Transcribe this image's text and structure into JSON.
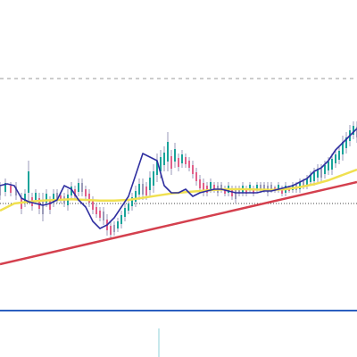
{
  "chart_data": {
    "type": "line",
    "title": "",
    "xlabel": "",
    "ylabel": "",
    "grid": false,
    "legend": "none",
    "x_range": [
      0,
      100
    ],
    "y_range": [
      0,
      100
    ],
    "colors": {
      "candle_up": "#1aa39a",
      "candle_down": "#e0608a",
      "candle_neutral": "#9a9ab8",
      "fast_ma": "#2f2fa0",
      "slow_ma": "#f0e050",
      "trendline": "#d4404e",
      "support_line": "#2b5fc0",
      "resistance_line": "#9a9a9a",
      "reference_line": "#444444",
      "cursor_line": "#8fd0d8"
    },
    "reference_levels": [
      {
        "name": "resistance",
        "style": "dashed",
        "y": 78
      },
      {
        "name": "reference",
        "style": "dotted",
        "y": 43
      },
      {
        "name": "support",
        "style": "solid",
        "y": 13
      }
    ],
    "trendline": {
      "x": [
        0,
        100
      ],
      "y": [
        26,
        49
      ]
    },
    "fast_ma": {
      "x": [
        0,
        2,
        4,
        6,
        8,
        10,
        12,
        14,
        16,
        18,
        20,
        22,
        24,
        26,
        28,
        30,
        32,
        34,
        36,
        38,
        40,
        42,
        44,
        46,
        48,
        50,
        52,
        54,
        56,
        58,
        60,
        62,
        64,
        66,
        68,
        70,
        72,
        74,
        76,
        78,
        80,
        82,
        84,
        86,
        88,
        90,
        92,
        94,
        96,
        98,
        100
      ],
      "y": [
        48,
        48.5,
        48,
        44.5,
        43.5,
        43,
        42.5,
        43,
        44,
        48,
        47,
        44,
        42,
        38,
        36,
        37,
        39,
        42,
        45,
        51,
        57,
        56,
        55,
        48,
        46,
        46,
        47,
        45,
        46,
        46.5,
        47,
        47,
        46.5,
        46,
        46,
        46,
        46,
        46.5,
        46.5,
        47,
        47.5,
        48,
        49,
        50,
        52,
        53,
        55,
        58,
        60,
        62,
        64
      ]
    },
    "slow_ma": {
      "x": [
        0,
        4,
        8,
        12,
        16,
        20,
        24,
        28,
        32,
        36,
        40,
        44,
        48,
        52,
        56,
        60,
        64,
        68,
        72,
        76,
        80,
        84,
        88,
        92,
        96,
        100
      ],
      "y": [
        41,
        43,
        43.5,
        43.8,
        44,
        44.2,
        44,
        43.8,
        43.8,
        44,
        44.6,
        45.2,
        45.8,
        46.2,
        46.5,
        46.8,
        47,
        47,
        46.9,
        46.8,
        47,
        47.6,
        48.4,
        49.5,
        51,
        52.5
      ]
    },
    "candles": [
      {
        "x": 0,
        "y": [
          44,
          49
        ]
      },
      {
        "x": 1.5,
        "y": [
          45,
          50
        ]
      },
      {
        "x": 3,
        "y": [
          45,
          49
        ]
      },
      {
        "x": 4.5,
        "y": [
          44,
          49
        ]
      },
      {
        "x": 6,
        "y": [
          40,
          46
        ]
      },
      {
        "x": 7,
        "y": [
          42,
          47
        ]
      },
      {
        "x": 8,
        "y": [
          43,
          55
        ]
      },
      {
        "x": 9,
        "y": [
          41,
          46
        ]
      },
      {
        "x": 10,
        "y": [
          43,
          47
        ]
      },
      {
        "x": 11,
        "y": [
          40,
          46
        ]
      },
      {
        "x": 12,
        "y": [
          38,
          46
        ]
      },
      {
        "x": 13,
        "y": [
          42,
          47
        ]
      },
      {
        "x": 14,
        "y": [
          40,
          45
        ]
      },
      {
        "x": 15,
        "y": [
          42,
          47
        ]
      },
      {
        "x": 16,
        "y": [
          43,
          47
        ]
      },
      {
        "x": 17,
        "y": [
          43,
          46
        ]
      },
      {
        "x": 18,
        "y": [
          42,
          46
        ]
      },
      {
        "x": 19,
        "y": [
          41,
          47
        ]
      },
      {
        "x": 20,
        "y": [
          44,
          49
        ]
      },
      {
        "x": 21,
        "y": [
          44,
          48
        ]
      },
      {
        "x": 22,
        "y": [
          45,
          50
        ]
      },
      {
        "x": 23,
        "y": [
          45,
          50
        ]
      },
      {
        "x": 24,
        "y": [
          44,
          48
        ]
      },
      {
        "x": 25,
        "y": [
          42,
          47
        ]
      },
      {
        "x": 26,
        "y": [
          40,
          45
        ]
      },
      {
        "x": 27,
        "y": [
          39,
          43
        ]
      },
      {
        "x": 28,
        "y": [
          38,
          42
        ]
      },
      {
        "x": 29,
        "y": [
          37,
          42
        ]
      },
      {
        "x": 30,
        "y": [
          34,
          40
        ]
      },
      {
        "x": 31,
        "y": [
          33,
          38
        ]
      },
      {
        "x": 32,
        "y": [
          34,
          38
        ]
      },
      {
        "x": 33,
        "y": [
          35,
          39
        ]
      },
      {
        "x": 34,
        "y": [
          36,
          41
        ]
      },
      {
        "x": 35,
        "y": [
          38,
          43
        ]
      },
      {
        "x": 36,
        "y": [
          40,
          44
        ]
      },
      {
        "x": 37,
        "y": [
          41,
          46
        ]
      },
      {
        "x": 38,
        "y": [
          42,
          48
        ]
      },
      {
        "x": 39,
        "y": [
          44,
          50
        ]
      },
      {
        "x": 40,
        "y": [
          44,
          50
        ]
      },
      {
        "x": 41,
        "y": [
          44,
          49
        ]
      },
      {
        "x": 42,
        "y": [
          45,
          52
        ]
      },
      {
        "x": 43,
        "y": [
          46,
          54
        ]
      },
      {
        "x": 44,
        "y": [
          49,
          57
        ]
      },
      {
        "x": 45,
        "y": [
          50,
          58
        ]
      },
      {
        "x": 46,
        "y": [
          52,
          59
        ]
      },
      {
        "x": 47,
        "y": [
          52,
          63
        ]
      },
      {
        "x": 48,
        "y": [
          51,
          58
        ]
      },
      {
        "x": 49,
        "y": [
          53,
          60
        ]
      },
      {
        "x": 50,
        "y": [
          52,
          57
        ]
      },
      {
        "x": 51,
        "y": [
          53,
          58
        ]
      },
      {
        "x": 52,
        "y": [
          53,
          57
        ]
      },
      {
        "x": 53,
        "y": [
          52,
          56
        ]
      },
      {
        "x": 54,
        "y": [
          50,
          55
        ]
      },
      {
        "x": 55,
        "y": [
          48,
          53
        ]
      },
      {
        "x": 56,
        "y": [
          46,
          51
        ]
      },
      {
        "x": 57,
        "y": [
          45,
          50
        ]
      },
      {
        "x": 58,
        "y": [
          45,
          49
        ]
      },
      {
        "x": 59,
        "y": [
          46,
          50
        ]
      },
      {
        "x": 60,
        "y": [
          46,
          49
        ]
      },
      {
        "x": 61,
        "y": [
          45,
          49
        ]
      },
      {
        "x": 62,
        "y": [
          46,
          49
        ]
      },
      {
        "x": 63,
        "y": [
          45,
          48
        ]
      },
      {
        "x": 64,
        "y": [
          45,
          49
        ]
      },
      {
        "x": 65,
        "y": [
          44,
          48
        ]
      },
      {
        "x": 66,
        "y": [
          43,
          48
        ]
      },
      {
        "x": 67,
        "y": [
          45,
          48
        ]
      },
      {
        "x": 68,
        "y": [
          45,
          49
        ]
      },
      {
        "x": 69,
        "y": [
          45,
          48
        ]
      },
      {
        "x": 70,
        "y": [
          46,
          49
        ]
      },
      {
        "x": 71,
        "y": [
          45,
          48
        ]
      },
      {
        "x": 72,
        "y": [
          46,
          49
        ]
      },
      {
        "x": 73,
        "y": [
          46,
          49
        ]
      },
      {
        "x": 74,
        "y": [
          46,
          49
        ]
      },
      {
        "x": 75,
        "y": [
          45,
          49
        ]
      },
      {
        "x": 76,
        "y": [
          46,
          49
        ]
      },
      {
        "x": 77,
        "y": [
          46,
          48
        ]
      },
      {
        "x": 78,
        "y": [
          46,
          49
        ]
      },
      {
        "x": 79,
        "y": [
          45,
          48
        ]
      },
      {
        "x": 80,
        "y": [
          45,
          49
        ]
      },
      {
        "x": 81,
        "y": [
          46,
          48
        ]
      },
      {
        "x": 82,
        "y": [
          46,
          49
        ]
      },
      {
        "x": 83,
        "y": [
          46,
          49
        ]
      },
      {
        "x": 84,
        "y": [
          46,
          50
        ]
      },
      {
        "x": 85,
        "y": [
          47,
          50
        ]
      },
      {
        "x": 86,
        "y": [
          47,
          51
        ]
      },
      {
        "x": 87,
        "y": [
          48,
          52
        ]
      },
      {
        "x": 88,
        "y": [
          48,
          53
        ]
      },
      {
        "x": 89,
        "y": [
          49,
          54
        ]
      },
      {
        "x": 90,
        "y": [
          49,
          54
        ]
      },
      {
        "x": 91,
        "y": [
          50,
          55
        ]
      },
      {
        "x": 92,
        "y": [
          51,
          56
        ]
      },
      {
        "x": 93,
        "y": [
          51,
          57
        ]
      },
      {
        "x": 94,
        "y": [
          53,
          58
        ]
      },
      {
        "x": 95,
        "y": [
          54,
          59
        ]
      },
      {
        "x": 96,
        "y": [
          55,
          62
        ]
      },
      {
        "x": 97,
        "y": [
          57,
          63
        ]
      },
      {
        "x": 98,
        "y": [
          59,
          65
        ]
      },
      {
        "x": 99,
        "y": [
          61,
          66
        ]
      },
      {
        "x": 100,
        "y": [
          60,
          66
        ]
      }
    ],
    "cursor_x": 44.5,
    "cursor_y_range": [
      0,
      8
    ]
  }
}
